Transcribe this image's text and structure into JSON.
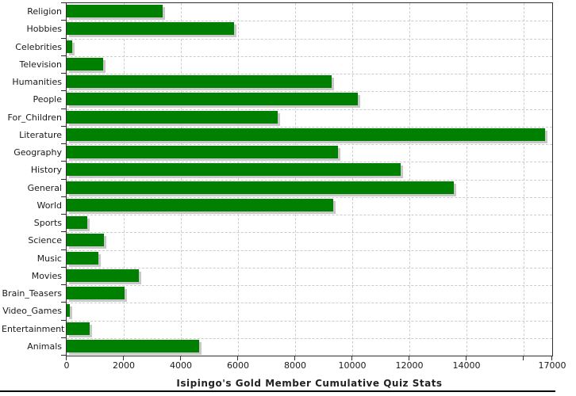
{
  "chart_data": {
    "type": "bar",
    "orientation": "horizontal",
    "title": "Isipingo's Gold Member Cumulative Quiz Stats",
    "categories": [
      "Religion",
      "Hobbies",
      "Celebrities",
      "Television",
      "Humanities",
      "People",
      "For_Children",
      "Literature",
      "Geography",
      "History",
      "General",
      "World",
      "Sports",
      "Science",
      "Music",
      "Movies",
      "Brain_Teasers",
      "Video_Games",
      "Entertainment",
      "Animals"
    ],
    "values": [
      3350,
      5850,
      200,
      1290,
      9290,
      10190,
      7390,
      16750,
      9500,
      11700,
      13550,
      9340,
      720,
      1300,
      1100,
      2540,
      2030,
      100,
      810,
      4640
    ],
    "xlabel": "",
    "ylabel": "",
    "xlim": [
      0,
      17000
    ],
    "x_tick_values": [
      0,
      2000,
      4000,
      6000,
      8000,
      10000,
      12000,
      14000,
      16000,
      17000
    ],
    "x_tick_labels": [
      "0",
      "2000",
      "4000",
      "6000",
      "8000",
      "10000",
      "12000",
      "14000",
      "",
      "17000"
    ],
    "gridline_values": [
      2000,
      4000,
      6000,
      8000,
      10000,
      12000,
      14000,
      16000
    ],
    "grid": "dashed",
    "legend": "none",
    "colors": {
      "bar": "#008000",
      "bar_shadow": "#c8c8c8",
      "gridline": "#cccccc",
      "axis": "#2e2e2e",
      "text": "#1a1a1a",
      "title": "#222222",
      "background": "#ffffff",
      "bottom_rule": "#000000"
    }
  }
}
